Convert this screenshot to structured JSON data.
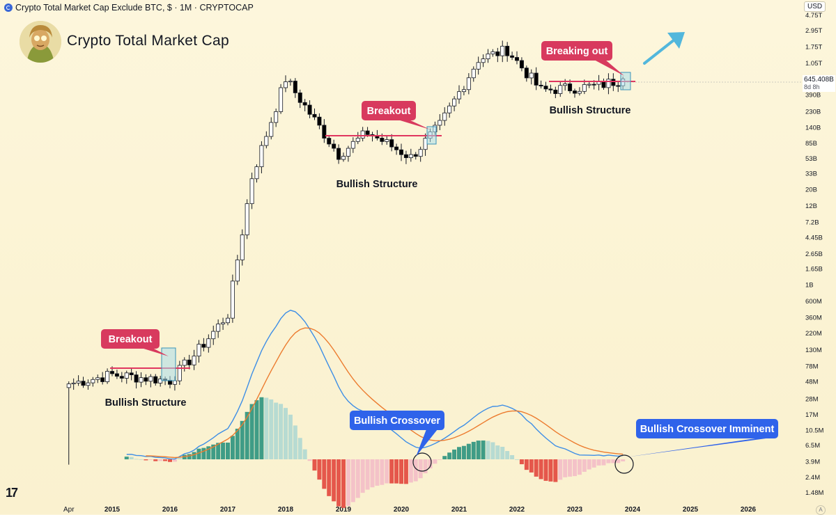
{
  "header": {
    "symbol_title": "Crypto Total Market Cap Exclude BTC, $ · 1M · CRYPTOCAP",
    "currency": "USD"
  },
  "brand": {
    "title": "Crypto Total Market Cap",
    "logo_text": "17",
    "auto_label": "A"
  },
  "price": {
    "value": "645.408B",
    "countdown": "8d 8h"
  },
  "colors": {
    "up": "#ffffff",
    "down": "#000000",
    "red_line": "#e0365f",
    "macd": "#3d8ee6",
    "signal": "#ec7b2e",
    "hist_up_strong": "#3f9c86",
    "hist_up_weak": "#b7dbd2",
    "hist_down_strong": "#e5574b",
    "hist_down_weak": "#f4c2c8",
    "callout_red": "#d83a5e",
    "callout_blue": "#2f63ea",
    "arrow": "#52b7dc"
  },
  "chart_data": {
    "type": "candlestick",
    "title": "",
    "y_scale": "log",
    "yticks": [
      "4.75T",
      "2.95T",
      "1.75T",
      "1.05T",
      "390B",
      "230B",
      "140B",
      "85B",
      "53B",
      "33B",
      "20B",
      "12B",
      "7.2B",
      "4.45B",
      "2.65B",
      "1.65B",
      "1B",
      "600M",
      "360M",
      "220M",
      "130M",
      "78M",
      "48M",
      "28M",
      "17M",
      "10.5M",
      "6.5M",
      "3.9M",
      "2.4M",
      "1.48M"
    ],
    "xticks": [
      "Apr",
      "2015",
      "2016",
      "2017",
      "2018",
      "2019",
      "2020",
      "2021",
      "2022",
      "2023",
      "2024",
      "2025",
      "2026"
    ],
    "candles_close_approx": [
      {
        "date": "2014-04",
        "close": "45M"
      },
      {
        "date": "2015-01",
        "close": "60M"
      },
      {
        "date": "2016-01",
        "close": "50M"
      },
      {
        "date": "2016-06",
        "close": "110M"
      },
      {
        "date": "2017-01",
        "close": "400M"
      },
      {
        "date": "2017-06",
        "close": "30B"
      },
      {
        "date": "2018-01",
        "close": "650B"
      },
      {
        "date": "2018-12",
        "close": "60B"
      },
      {
        "date": "2019-06",
        "close": "120B"
      },
      {
        "date": "2020-03",
        "close": "55B"
      },
      {
        "date": "2020-09",
        "close": "150B"
      },
      {
        "date": "2021-05",
        "close": "1.2T"
      },
      {
        "date": "2021-11",
        "close": "1.6T"
      },
      {
        "date": "2022-06",
        "close": "450B"
      },
      {
        "date": "2023-06",
        "close": "520B"
      },
      {
        "date": "2023-11",
        "close": "645.408B"
      }
    ],
    "annotations": [
      {
        "label": "Breakout"
      },
      {
        "label": "Breakout"
      },
      {
        "label": "Breaking out"
      },
      {
        "label": "Bullish Structure"
      },
      {
        "label": "Bullish Structure"
      },
      {
        "label": "Bullish Structure"
      },
      {
        "label": "Bullish Crossover"
      },
      {
        "label": "Bullish Crossover Imminent"
      }
    ],
    "indicator": {
      "type": "macd"
    }
  }
}
